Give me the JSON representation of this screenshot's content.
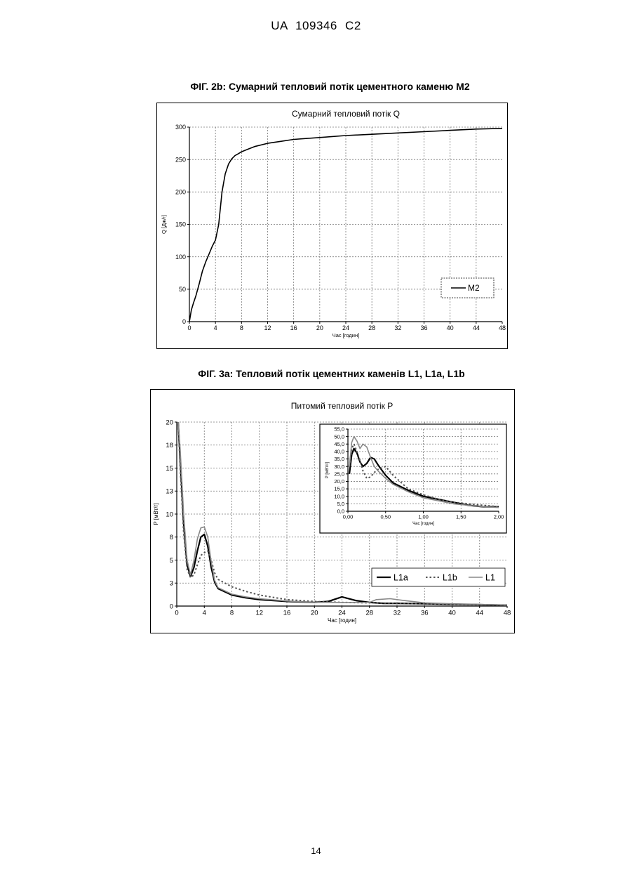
{
  "header": {
    "text": "UA   109346   C2"
  },
  "captions": {
    "fig2b": "ФІГ. 2b: Сумарний тепловий потік цементного каменю M2",
    "fig3a": "ФІГ. 3a: Тепловий потік цементних каменів L1, L1a, L1b"
  },
  "page_number": "14",
  "colors": {
    "black": "#000000",
    "dark_gray": "#555555",
    "gray": "#888888",
    "grid": "#777777"
  },
  "chart_data": [
    {
      "type": "line",
      "title": "Сумарний тепловий потік Q",
      "xlabel": "Час [годин]",
      "ylabel": "Q [Дж/г]",
      "xlim": [
        0,
        48
      ],
      "ylim": [
        0,
        300
      ],
      "xticks": [
        0,
        4,
        8,
        12,
        16,
        20,
        24,
        28,
        32,
        36,
        40,
        44,
        48
      ],
      "yticks": [
        0,
        50,
        100,
        150,
        200,
        250,
        300
      ],
      "grid": true,
      "legend_position": "bottom-right",
      "series": [
        {
          "name": "M2",
          "style": "solid",
          "color": "#000000",
          "x": [
            0,
            0.3,
            0.6,
            1,
            1.5,
            2,
            2.5,
            3,
            3.5,
            4,
            4.5,
            5,
            5.5,
            6,
            6.5,
            7,
            7.5,
            8,
            9,
            10,
            12,
            14,
            16,
            20,
            24,
            28,
            32,
            36,
            40,
            44,
            48
          ],
          "y": [
            0,
            18,
            28,
            40,
            58,
            78,
            92,
            104,
            116,
            126,
            150,
            200,
            228,
            243,
            251,
            256,
            259,
            262,
            266,
            270,
            275,
            278,
            281,
            284,
            287,
            289,
            291,
            293,
            295,
            297,
            298
          ]
        }
      ]
    },
    {
      "type": "line",
      "title": "Питомий тепловий потік P",
      "xlabel": "Час [годин]",
      "ylabel": "P [мВт/г]",
      "xlim": [
        0,
        48
      ],
      "ylim": [
        0,
        20
      ],
      "xticks": [
        0,
        4,
        8,
        12,
        16,
        20,
        24,
        28,
        32,
        36,
        40,
        44,
        48
      ],
      "yticks": [
        0,
        3,
        5,
        8,
        10,
        13,
        15,
        18,
        20
      ],
      "ytick_values": [
        0,
        2.5,
        5,
        7.5,
        10,
        12.5,
        15,
        17.5,
        20
      ],
      "grid": true,
      "legend_position": "bottom-right",
      "series": [
        {
          "name": "L1a",
          "style": "solid-thick",
          "color": "#000000",
          "x": [
            0.2,
            0.5,
            1,
            1.5,
            2,
            2.5,
            3,
            3.5,
            4,
            4.5,
            5,
            5.5,
            6,
            8,
            10,
            12,
            16,
            20,
            22,
            24,
            26,
            28,
            30,
            32,
            36,
            40,
            44,
            48
          ],
          "y": [
            20,
            16,
            9,
            4.5,
            3.2,
            4.2,
            6,
            7.5,
            7.8,
            6.5,
            4.2,
            2.6,
            1.9,
            1.2,
            0.9,
            0.7,
            0.5,
            0.4,
            0.5,
            1.0,
            0.6,
            0.4,
            0.3,
            0.3,
            0.25,
            0.2,
            0.15,
            0.1
          ]
        },
        {
          "name": "L1b",
          "style": "dotted",
          "color": "#555555",
          "x": [
            0.2,
            0.5,
            1,
            1.5,
            2,
            2.5,
            3,
            3.5,
            4,
            4.5,
            5,
            5.5,
            6,
            8,
            10,
            12,
            16,
            20,
            24,
            28,
            32,
            36,
            40,
            44,
            48
          ],
          "y": [
            20,
            15,
            8,
            4,
            3.1,
            3.4,
            4.5,
            5.5,
            5.8,
            6.0,
            5.0,
            3.6,
            2.9,
            2.1,
            1.6,
            1.2,
            0.7,
            0.5,
            0.4,
            0.35,
            0.3,
            0.25,
            0.2,
            0.15,
            0.1
          ]
        },
        {
          "name": "L1",
          "style": "solid",
          "color": "#888888",
          "x": [
            0.2,
            0.5,
            1,
            1.5,
            2,
            2.5,
            3,
            3.5,
            4,
            4.5,
            5,
            5.5,
            6,
            8,
            10,
            12,
            16,
            20,
            24,
            28,
            29,
            31,
            33,
            36,
            40,
            44,
            48
          ],
          "y": [
            20,
            17,
            10,
            5,
            3.4,
            5,
            7.3,
            8.5,
            8.6,
            7.5,
            4.8,
            2.8,
            2.0,
            1.3,
            1.0,
            0.8,
            0.55,
            0.4,
            0.4,
            0.4,
            0.7,
            0.8,
            0.6,
            0.35,
            0.25,
            0.18,
            0.1
          ]
        }
      ],
      "inset": {
        "type": "line",
        "xlabel": "Час [годин]",
        "ylabel": "P [мВт/г]",
        "xlim": [
          0,
          2
        ],
        "ylim": [
          0,
          55
        ],
        "xticks": [
          "0,00",
          "0,50",
          "1,00",
          "1,50",
          "2,00"
        ],
        "xtick_values": [
          0,
          0.5,
          1,
          1.5,
          2
        ],
        "yticks": [
          "0,0",
          "5,0",
          "10,0",
          "15,0",
          "20,0",
          "25,0",
          "30,0",
          "35,0",
          "40,0",
          "45,0",
          "50,0",
          "55,0"
        ],
        "ytick_values": [
          0,
          5,
          10,
          15,
          20,
          25,
          30,
          35,
          40,
          45,
          50,
          55
        ],
        "series": [
          {
            "name": "L1a",
            "style": "solid-thick",
            "color": "#000000",
            "x": [
              0.02,
              0.05,
              0.08,
              0.12,
              0.16,
              0.2,
              0.25,
              0.3,
              0.35,
              0.4,
              0.5,
              0.6,
              0.8,
              1.0,
              1.2,
              1.4,
              1.6,
              1.8,
              2.0
            ],
            "y": [
              25,
              38,
              42,
              39,
              33,
              30,
              32,
              36,
              35,
              31,
              24,
              19,
              14,
              10,
              8,
              6,
              4,
              3,
              3
            ]
          },
          {
            "name": "L1b",
            "style": "dotted",
            "color": "#555555",
            "x": [
              0.02,
              0.05,
              0.08,
              0.12,
              0.16,
              0.2,
              0.25,
              0.3,
              0.35,
              0.4,
              0.5,
              0.6,
              0.8,
              1.0,
              1.2,
              1.4,
              1.6,
              1.8,
              2.0
            ],
            "y": [
              30,
              42,
              45,
              40,
              34,
              27,
              22,
              23,
              26,
              28,
              30,
              24,
              15,
              11,
              8,
              6,
              5,
              4,
              3
            ]
          },
          {
            "name": "L1",
            "style": "solid",
            "color": "#888888",
            "x": [
              0.02,
              0.05,
              0.08,
              0.12,
              0.16,
              0.2,
              0.25,
              0.3,
              0.35,
              0.4,
              0.5,
              0.6,
              0.8,
              1.0,
              1.2,
              1.4,
              1.6,
              1.8,
              2.0
            ],
            "y": [
              30,
              46,
              50,
              47,
              42,
              45,
              43,
              36,
              30,
              27,
              22,
              18,
              13,
              9,
              7,
              5,
              4,
              3,
              2.5
            ]
          }
        ]
      }
    }
  ]
}
